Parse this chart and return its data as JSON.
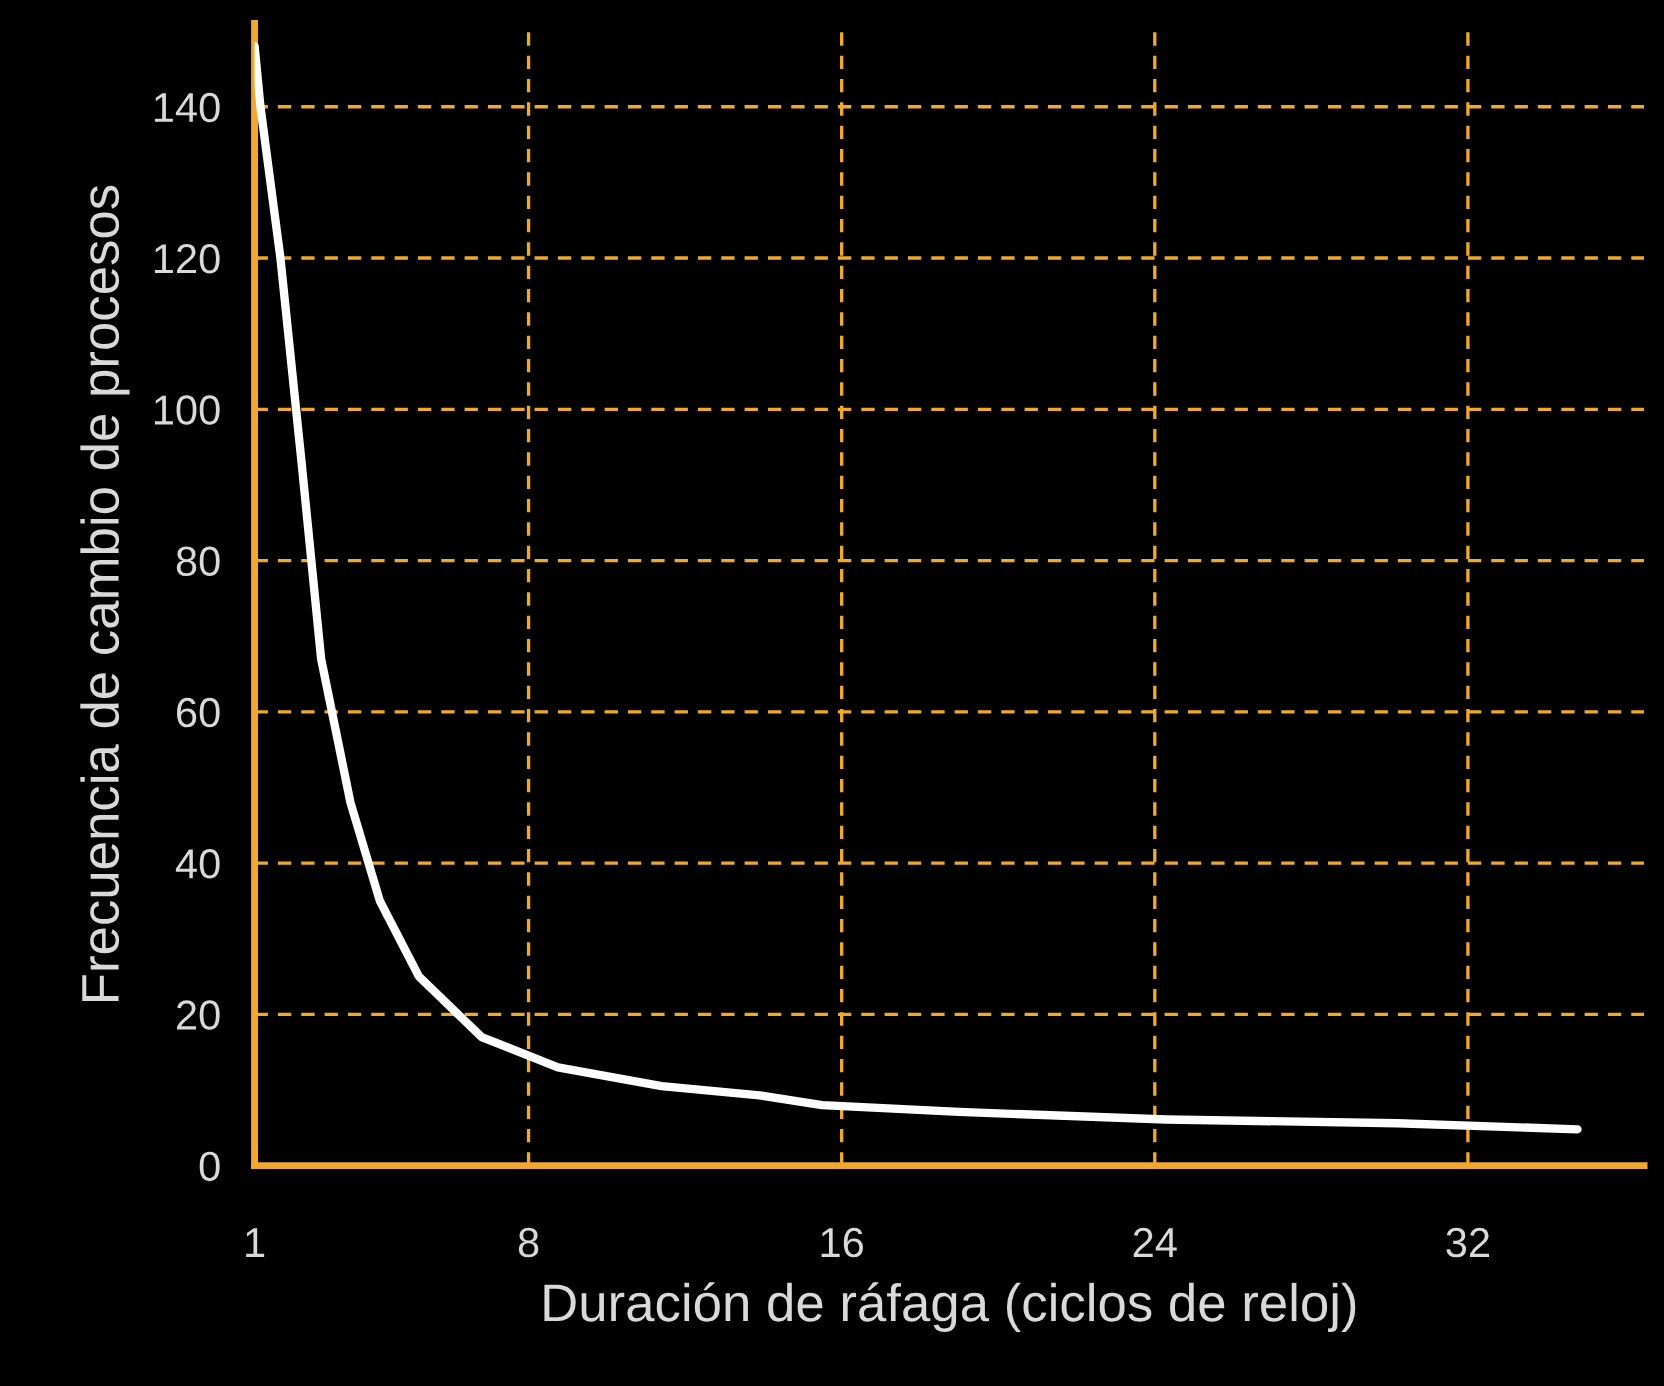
{
  "chart_data": {
    "type": "line",
    "xlabel": "Duración de ráfaga (ciclos de reloj)",
    "ylabel": "Frecuencia de cambio de procesos",
    "x": [
      1,
      1.15,
      1.66,
      2.2,
      2.7,
      3.45,
      4.2,
      5.2,
      6.8,
      8.75,
      11.4,
      13.9,
      15.5,
      19,
      24.3,
      30.2,
      34.8
    ],
    "series": [
      {
        "color": "#ffffff",
        "values": [
          148,
          140,
          120,
          93,
          67,
          48,
          35,
          25,
          17,
          13,
          10.5,
          9.3,
          8,
          7.1,
          6.1,
          5.6,
          4.8
        ]
      }
    ],
    "xlim": [
      1,
      36.5
    ],
    "ylim": [
      0,
      151
    ],
    "xticks": [
      1,
      8,
      16,
      24,
      32
    ],
    "yticks": [
      0,
      20,
      40,
      60,
      80,
      100,
      120,
      140
    ],
    "grid": true,
    "marker": "none",
    "line_style": "solid"
  }
}
